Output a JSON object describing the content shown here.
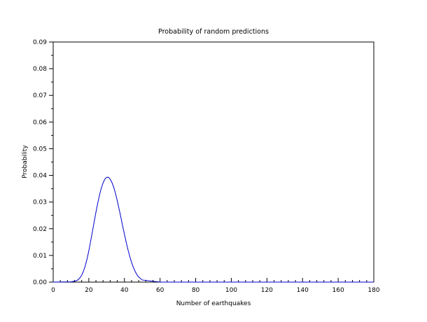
{
  "chart_data": {
    "type": "line",
    "title": "Probability of random predictions",
    "xlabel": "Number of earthquakes",
    "ylabel": "Probability",
    "xlim": [
      0,
      180
    ],
    "ylim": [
      0,
      0.09
    ],
    "x_ticks": [
      "0",
      "20",
      "40",
      "60",
      "80",
      "100",
      "120",
      "140",
      "160",
      "180"
    ],
    "y_ticks": [
      "0.00",
      "0.01",
      "0.02",
      "0.03",
      "0.04",
      "0.05",
      "0.06",
      "0.07",
      "0.08",
      "0.09"
    ],
    "grid": false,
    "series": [
      {
        "color": "#0000cc",
        "x": [
          0,
          10,
          13,
          14,
          15,
          16,
          17,
          18,
          19,
          20,
          21,
          22,
          23,
          24,
          25,
          26,
          27,
          28,
          29,
          30,
          31,
          32,
          33,
          34,
          35,
          36,
          37,
          38,
          39,
          40,
          41,
          42,
          43,
          44,
          45,
          46,
          47,
          48,
          50,
          60,
          80,
          100,
          120,
          140,
          160,
          180
        ],
        "y": [
          0,
          0.0001,
          0.0005,
          0.0009,
          0.0016,
          0.0026,
          0.0041,
          0.0061,
          0.0087,
          0.0117,
          0.0152,
          0.0189,
          0.0226,
          0.0262,
          0.0296,
          0.0326,
          0.0352,
          0.0372,
          0.0386,
          0.0393,
          0.0393,
          0.0386,
          0.0373,
          0.0355,
          0.0332,
          0.0304,
          0.0274,
          0.0243,
          0.021,
          0.0179,
          0.0149,
          0.0121,
          0.0096,
          0.0074,
          0.0055,
          0.004,
          0.0028,
          0.0019,
          0.0008,
          0,
          0,
          0,
          0,
          0,
          0,
          0
        ]
      }
    ]
  }
}
